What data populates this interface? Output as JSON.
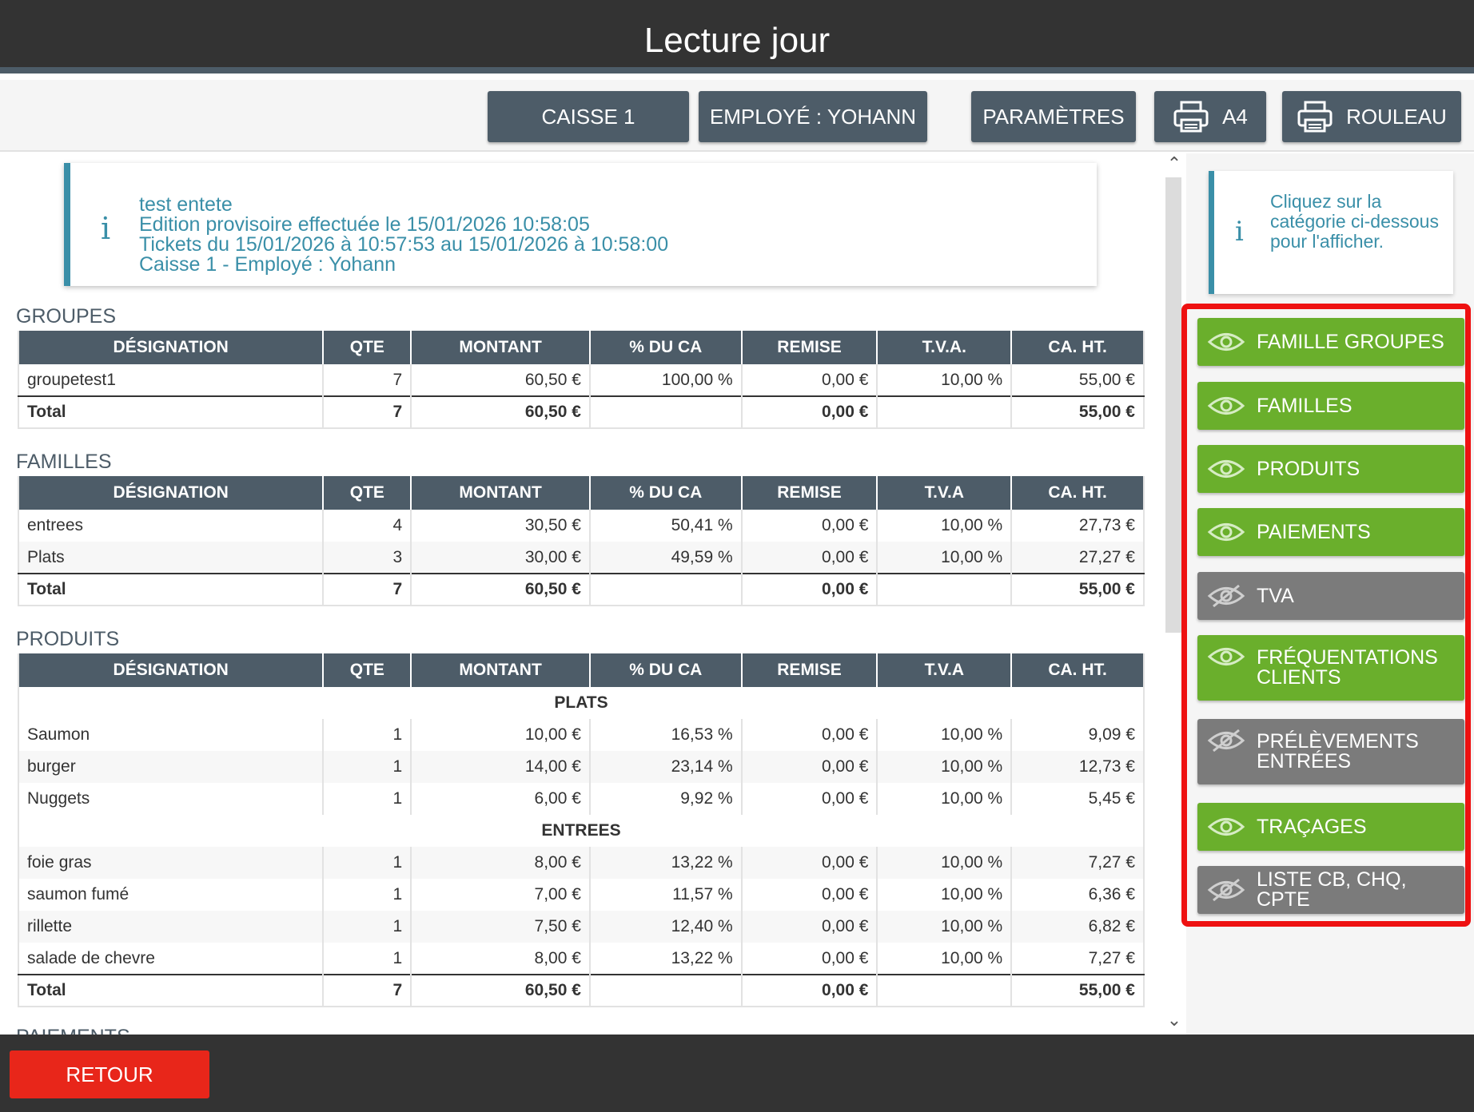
{
  "window": {
    "title": "Lecture jour"
  },
  "toolbar": {
    "caisse": "CAISSE 1",
    "employe": "EMPLOYÉ : YOHANN",
    "parametres": "PARAMÈTRES",
    "a4": "A4",
    "rouleau": "ROULEAU",
    "print_icon": "printer-icon"
  },
  "info": {
    "line1": "test entete",
    "line2": "Edition provisoire effectuée le 15/01/2026 10:58:05",
    "line3": "Tickets du 15/01/2026 à 10:57:53 au 15/01/2026 à 10:58:00",
    "line4": "Caisse 1 - Employé : Yohann",
    "icon": "info-icon"
  },
  "columns": [
    "DÉSIGNATION",
    "QTE",
    "MONTANT",
    "% DU CA",
    "REMISE",
    "T.V.A.",
    "CA. HT."
  ],
  "columns_short": [
    "DÉSIGNATION",
    "QTE",
    "MONTANT",
    "% DU CA",
    "REMISE",
    "T.V.A",
    "CA. HT."
  ],
  "groupes": {
    "title": "GROUPES",
    "rows": [
      [
        "groupetest1",
        "7",
        "60,50 €",
        "100,00 %",
        "0,00 €",
        "10,00 %",
        "55,00 €"
      ]
    ],
    "total": [
      "Total",
      "7",
      "60,50 €",
      "",
      "0,00 €",
      "",
      "55,00 €"
    ]
  },
  "familles": {
    "title": "FAMILLES",
    "rows": [
      [
        "entrees",
        "4",
        "30,50 €",
        "50,41 %",
        "0,00 €",
        "10,00 %",
        "27,73 €"
      ],
      [
        "Plats",
        "3",
        "30,00 €",
        "49,59 %",
        "0,00 €",
        "10,00 %",
        "27,27 €"
      ]
    ],
    "total": [
      "Total",
      "7",
      "60,50 €",
      "",
      "0,00 €",
      "",
      "55,00 €"
    ]
  },
  "produits": {
    "title": "PRODUITS",
    "group1": "PLATS",
    "rows1": [
      [
        "Saumon",
        "1",
        "10,00 €",
        "16,53 %",
        "0,00 €",
        "10,00 %",
        "9,09 €"
      ],
      [
        "burger",
        "1",
        "14,00 €",
        "23,14 %",
        "0,00 €",
        "10,00 %",
        "12,73 €"
      ],
      [
        "Nuggets",
        "1",
        "6,00 €",
        "9,92 %",
        "0,00 €",
        "10,00 %",
        "5,45 €"
      ]
    ],
    "group2": "ENTREES",
    "rows2": [
      [
        "foie gras",
        "1",
        "8,00 €",
        "13,22 %",
        "0,00 €",
        "10,00 %",
        "7,27 €"
      ],
      [
        "saumon fumé",
        "1",
        "7,00 €",
        "11,57 %",
        "0,00 €",
        "10,00 %",
        "6,36 €"
      ],
      [
        "rillette",
        "1",
        "7,50 €",
        "12,40 %",
        "0,00 €",
        "10,00 %",
        "6,82 €"
      ],
      [
        "salade de chevre",
        "1",
        "8,00 €",
        "13,22 %",
        "0,00 €",
        "10,00 %",
        "7,27 €"
      ]
    ],
    "total": [
      "Total",
      "7",
      "60,50 €",
      "",
      "0,00 €",
      "",
      "55,00 €"
    ]
  },
  "next_section_cut": "PAIEMENTS",
  "hint": {
    "text": "Cliquez sur la catégorie ci-dessous pour l'afficher.",
    "icon": "info-icon"
  },
  "categories": [
    {
      "label": "FAMILLE GROUPES",
      "visible": true,
      "icon": "eye-icon"
    },
    {
      "label": "FAMILLES",
      "visible": true,
      "icon": "eye-icon"
    },
    {
      "label": "PRODUITS",
      "visible": true,
      "icon": "eye-icon"
    },
    {
      "label": "PAIEMENTS",
      "visible": true,
      "icon": "eye-icon"
    },
    {
      "label": "TVA",
      "visible": false,
      "icon": "eye-slash-icon"
    },
    {
      "label": "FRÉQUENTATIONS CLIENTS",
      "visible": true,
      "icon": "eye-icon"
    },
    {
      "label": "PRÉLÈVEMENTS ENTRÉES",
      "visible": false,
      "icon": "eye-slash-icon"
    },
    {
      "label": "TRAÇAGES",
      "visible": true,
      "icon": "eye-icon"
    },
    {
      "label": "LISTE CB, CHQ, CPTE",
      "visible": false,
      "icon": "eye-slash-icon"
    }
  ],
  "footer": {
    "retour": "RETOUR"
  },
  "colors": {
    "header": "#333333",
    "button": "#4d5c68",
    "accent": "#3a8fa8",
    "visible": "#6aaf2c",
    "hidden": "#7b7b7b",
    "danger": "#e8261a",
    "highlight": "#ee1111"
  }
}
